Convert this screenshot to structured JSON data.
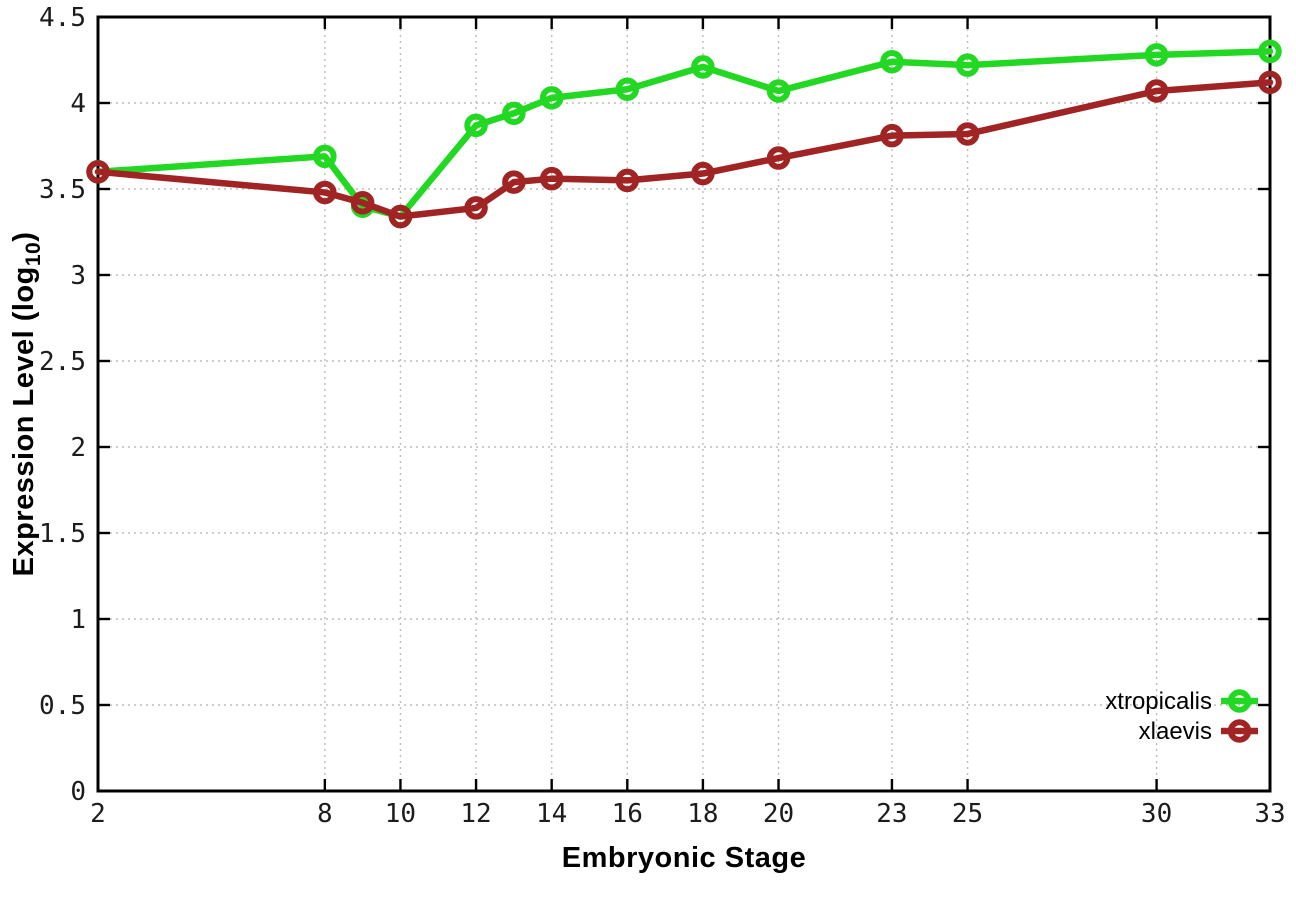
{
  "chart_data": {
    "type": "line",
    "title": "",
    "xlabel": "Embryonic Stage",
    "ylabel": {
      "pre": "Expression Level (log",
      "sub": "10",
      "post": ")"
    },
    "xlim": [
      2,
      33
    ],
    "ylim": [
      0,
      4.5
    ],
    "grid": true,
    "legend_position": "bottom-right",
    "marker": "open-circle",
    "x": [
      2,
      8,
      9,
      10,
      12,
      13,
      14,
      16,
      18,
      20,
      23,
      25,
      30,
      33
    ],
    "series": [
      {
        "name": "xtropicalis",
        "color": "#22d822",
        "values": [
          3.6,
          3.69,
          3.4,
          3.34,
          3.87,
          3.94,
          4.03,
          4.08,
          4.21,
          4.07,
          4.24,
          4.22,
          4.28,
          4.3
        ]
      },
      {
        "name": "xlaevis",
        "color": "#a02424",
        "values": [
          3.6,
          3.48,
          3.42,
          3.34,
          3.39,
          3.54,
          3.56,
          3.55,
          3.59,
          3.68,
          3.81,
          3.82,
          4.07,
          4.12
        ]
      }
    ],
    "x_ticks": {
      "values": [
        2,
        8,
        10,
        12,
        14,
        16,
        18,
        20,
        23,
        25,
        30,
        33
      ],
      "labels": [
        "2",
        "8",
        "10",
        "12",
        "14",
        "16",
        "18",
        "20",
        "23",
        "25",
        "30",
        "33"
      ]
    },
    "y_ticks": {
      "values": [
        0,
        0.5,
        1,
        1.5,
        2,
        2.5,
        3,
        3.5,
        4,
        4.5
      ],
      "labels": [
        "0",
        "0.5",
        "1",
        "1.5",
        "2",
        "2.5",
        "3",
        "3.5",
        "4",
        "4.5"
      ]
    }
  },
  "style": {
    "background": "#ffffff",
    "grid_color": "#bdbdbd",
    "axis_color": "#000000",
    "text_color": "#1c1c1c"
  }
}
